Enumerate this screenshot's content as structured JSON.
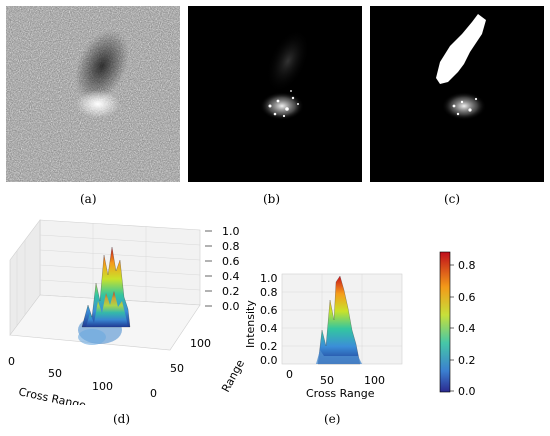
{
  "captions": {
    "a": "(a)",
    "b": "(b)",
    "c": "(c)",
    "d": "(d)",
    "e": "(e)"
  },
  "panel_d": {
    "x_label": "Cross Range",
    "y_label": "Range",
    "x_ticks": [
      "0",
      "50",
      "100"
    ],
    "y_ticks": [
      "0",
      "50",
      "100"
    ],
    "z_ticks": [
      "0.0",
      "0.2",
      "0.4",
      "0.6",
      "0.8",
      "1.0"
    ]
  },
  "panel_e": {
    "x_label": "Cross Range",
    "z_label": "Intensity",
    "x_ticks": [
      "0",
      "50",
      "100"
    ],
    "z_ticks": [
      "0.0",
      "0.2",
      "0.4",
      "0.6",
      "0.8",
      "1.0"
    ]
  },
  "colorbar": {
    "ticks": [
      "0.8",
      "0.6",
      "0.4",
      "0.2",
      "0.0"
    ],
    "colormap": "jet"
  }
}
